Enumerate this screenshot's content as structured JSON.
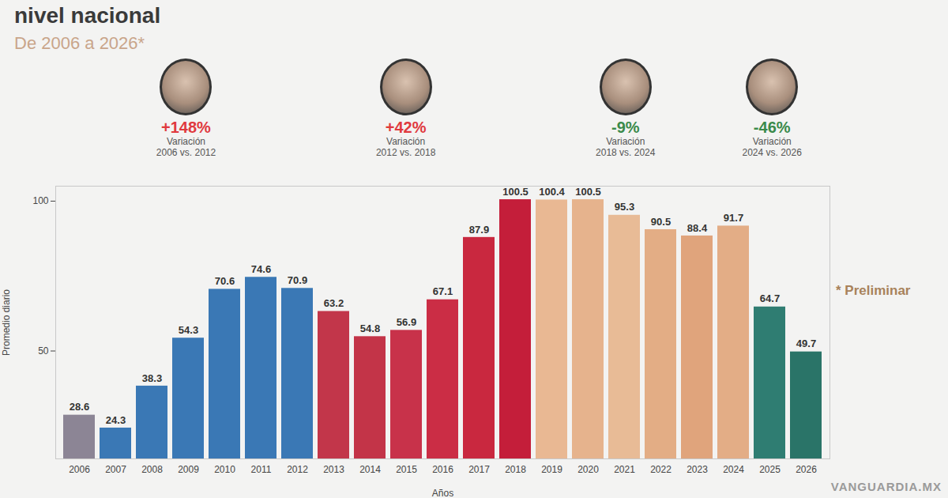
{
  "chart_data": {
    "type": "bar",
    "title": "nivel nacional",
    "subtitle": "De 2006 a 2026*",
    "x_label": "Años",
    "y_label": "Promedio diario",
    "categories": [
      "2006",
      "2007",
      "2008",
      "2009",
      "2010",
      "2011",
      "2012",
      "2013",
      "2014",
      "2015",
      "2016",
      "2017",
      "2018",
      "2019",
      "2020",
      "2021",
      "2022",
      "2023",
      "2024",
      "2025",
      "2026"
    ],
    "values": [
      28.6,
      24.3,
      38.3,
      54.3,
      70.6,
      74.6,
      70.9,
      63.2,
      54.8,
      56.9,
      67.1,
      87.9,
      100.5,
      100.4,
      100.5,
      95.3,
      90.5,
      88.4,
      91.7,
      64.7,
      49.7
    ],
    "colors": [
      "#8c8595",
      "#3a78b5",
      "#3a78b5",
      "#3a78b5",
      "#3a78b5",
      "#3a78b5",
      "#3a78b5",
      "#c2364a",
      "#c33448",
      "#c8324a",
      "#cb2d45",
      "#c9283f",
      "#c41e3a",
      "#e9b893",
      "#e6b38d",
      "#e8bb96",
      "#e3ad85",
      "#e0a47c",
      "#e3ad86",
      "#2f7d72",
      "#2a7468"
    ],
    "ylim": [
      14,
      105
    ],
    "yticks": [
      50,
      100
    ],
    "grid": false,
    "data_labels": true,
    "annotations": [
      {
        "text": "+148%",
        "note": "Variación 2006 vs. 2012",
        "period": [
          "2006",
          "2012"
        ],
        "color": "#e0393e"
      },
      {
        "text": "+42%",
        "note": "Variación 2012 vs. 2018",
        "period": [
          "2012",
          "2018"
        ],
        "color": "#e0393e"
      },
      {
        "text": "-9%",
        "note": "Variación 2018 vs. 2024",
        "period": [
          "2018",
          "2024"
        ],
        "color": "#3a8a4a"
      },
      {
        "text": "-46%",
        "note": "Variación 2024 vs. 2026",
        "period": [
          "2024",
          "2026"
        ],
        "color": "#3a8a4a"
      }
    ],
    "footnote": "* Preliminar",
    "credit": "VANGUARDIA.MX"
  }
}
